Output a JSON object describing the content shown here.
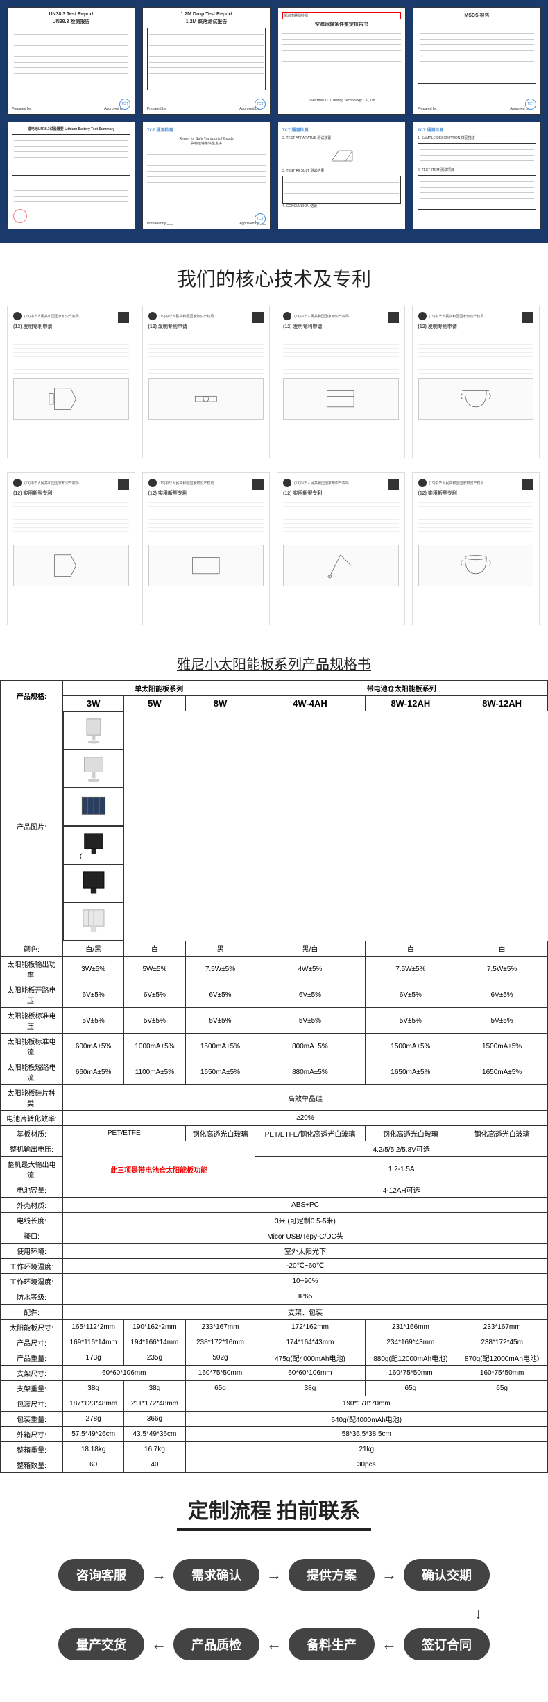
{
  "certs": {
    "row1": [
      {
        "title": "UN38.3 Test Report",
        "subtitle": "UN38.3 检测报告"
      },
      {
        "title": "1.2M Drop Test Report",
        "subtitle": "1.2M 跌落测试报告"
      },
      {
        "title": "",
        "subtitle": "空海运输条件鉴定报告书"
      },
      {
        "title": "MSDS 报告",
        "subtitle": ""
      }
    ],
    "row2": [
      {
        "title": "锂电池UN38.3试验概要 Lithium Battery Test Summary",
        "tct": false
      },
      {
        "title": "TCT 通测检测",
        "tct": true
      },
      {
        "title": "TCT 通测检测",
        "tct": true
      },
      {
        "title": "TCT 通测检测",
        "tct": true
      }
    ]
  },
  "patentSectionTitle": "我们的核心技术及专利",
  "patents": {
    "row1": [
      {
        "heading": "(12) 发明专利申请",
        "diagram": "lamp1"
      },
      {
        "heading": "(12) 发明专利申请",
        "diagram": "valve"
      },
      {
        "heading": "(12) 发明专利申请",
        "diagram": "box"
      },
      {
        "heading": "(12) 发明专利申请",
        "diagram": "cup"
      }
    ],
    "row2": [
      {
        "heading": "(12) 实用新型专利",
        "diagram": "lamp2"
      },
      {
        "heading": "(12) 实用新型专利",
        "diagram": "box2"
      },
      {
        "heading": "(12) 实用新型专利",
        "diagram": "stand"
      },
      {
        "heading": "(12) 实用新型专利",
        "diagram": "cup2"
      }
    ]
  },
  "specTitle": "雅尼小太阳能板系列产品规格书",
  "spec": {
    "label_product_spec": "产品规格:",
    "label_single": "单太阳能板系列",
    "label_battery": "带电池仓太阳能板系列",
    "cols": [
      "3W",
      "5W",
      "8W",
      "4W-4AH",
      "8W-12AH",
      "8W-12AH"
    ],
    "label_img": "产品图片:",
    "rows": [
      {
        "label": "颜色:",
        "vals": [
          "白/黑",
          "白",
          "黑",
          "黑/白",
          "白",
          "白"
        ]
      },
      {
        "label": "太阳能板输出功率:",
        "vals": [
          "3W±5%",
          "5W±5%",
          "7.5W±5%",
          "4W±5%",
          "7.5W±5%",
          "7.5W±5%"
        ]
      },
      {
        "label": "太阳能板开路电压:",
        "vals": [
          "6V±5%",
          "6V±5%",
          "6V±5%",
          "6V±5%",
          "6V±5%",
          "6V±5%"
        ]
      },
      {
        "label": "太阳能板标准电压:",
        "vals": [
          "5V±5%",
          "5V±5%",
          "5V±5%",
          "5V±5%",
          "5V±5%",
          "5V±5%"
        ]
      },
      {
        "label": "太阳能板标准电流:",
        "vals": [
          "600mA±5%",
          "1000mA±5%",
          "1500mA±5%",
          "800mA±5%",
          "1500mA±5%",
          "1500mA±5%"
        ]
      },
      {
        "label": "太阳能板短路电流:",
        "vals": [
          "660mA±5%",
          "1100mA±5%",
          "1650mA±5%",
          "880mA±5%",
          "1650mA±5%",
          "1650mA±5%"
        ]
      }
    ],
    "full_rows": [
      {
        "label": "太阳能板硅片种类:",
        "val": "高效单晶硅"
      },
      {
        "label": "电池片转化效率:",
        "val": "≥20%"
      }
    ],
    "row_base": {
      "label": "基板材质:",
      "vals": [
        "PET/ETFE",
        "钢化高透光白玻璃",
        "PET/ETFE/钢化高透光白玻璃",
        "钢化高透光白玻璃",
        "钢化高透光白玻璃"
      ],
      "spans": [
        2,
        1,
        1,
        1,
        1
      ]
    },
    "battery_rows": [
      {
        "label": "整机输出电压:",
        "red": "此三项是带电池仓太阳能板功能",
        "vals": [
          "4.2/5/5.2/5.8V可选"
        ]
      },
      {
        "label": "整机最大输出电流:",
        "vals": [
          "1.2-1.5A"
        ]
      },
      {
        "label": "电池容量:",
        "vals": [
          "4-12AH可选"
        ]
      }
    ],
    "full_rows2": [
      {
        "label": "外壳材质:",
        "val": "ABS+PC"
      },
      {
        "label": "电线长度:",
        "val": "3米 (可定制0.5-5米)"
      },
      {
        "label": "接口:",
        "val": "Micor USB/Tepy-C/DC头"
      },
      {
        "label": "使用环境:",
        "val": "室外太阳光下"
      },
      {
        "label": "工作环境温度:",
        "val": "-20℃~60℃"
      },
      {
        "label": "工作环境湿度:",
        "val": "10~90%"
      },
      {
        "label": "防水等级:",
        "val": "IP65"
      },
      {
        "label": "配件:",
        "val": "支架、包装"
      }
    ],
    "dim_rows": [
      {
        "label": "太阳能板尺寸:",
        "vals": [
          "165*112*2mm",
          "190*162*2mm",
          "233*167mm",
          "172*162mm",
          "231*166mm",
          "233*167mm"
        ]
      },
      {
        "label": "产品尺寸:",
        "vals": [
          "169*116*14mm",
          "194*166*14mm",
          "238*172*16mm",
          "174*164*43mm",
          "234*169*43mm",
          "238*172*45m"
        ]
      },
      {
        "label": "产品重量:",
        "vals": [
          "173g",
          "235g",
          "502g",
          "475g(配4000mAh电池)",
          "880g(配12000mAh电池)",
          "870g(配12000mAh电池)"
        ]
      }
    ],
    "row_bracket": {
      "label": "支架尺寸:",
      "v1": "60*60*106mm",
      "v2": "160*75*50mm",
      "v3": "60*60*106mm",
      "v4": "160*75*50mm",
      "v5": "160*75*50mm"
    },
    "row_bracket_wt": {
      "label": "支架重量:",
      "vals": [
        "38g",
        "38g",
        "65g",
        "38g",
        "65g",
        "65g"
      ]
    },
    "row_pack": {
      "label": "包装尺寸:",
      "v1": "187*123*48mm",
      "v2": "211*172*48mm",
      "v3": "190*178*70mm"
    },
    "row_pack_wt": {
      "label": "包装重量:",
      "v1": "278g",
      "v2": "366g",
      "v3": "640g(配4000mAh电池)"
    },
    "row_box": {
      "label": "外箱尺寸:",
      "v1": "57.5*49*26cm",
      "v2": "43.5*49*36cm",
      "v3": "58*36.5*38.5cm"
    },
    "row_box_wt": {
      "label": "整箱重量:",
      "v1": "18.18kg",
      "v2": "16.7kg",
      "v3": "21kg"
    },
    "row_qty": {
      "label": "整箱数量:",
      "v1": "60",
      "v2": "40",
      "v3": "30pcs"
    }
  },
  "process": {
    "title": "定制流程 拍前联系",
    "steps1": [
      "咨询客服",
      "需求确认",
      "提供方案",
      "确认交期"
    ],
    "steps2": [
      "量产交货",
      "产品质检",
      "备料生产",
      "签订合同"
    ]
  }
}
